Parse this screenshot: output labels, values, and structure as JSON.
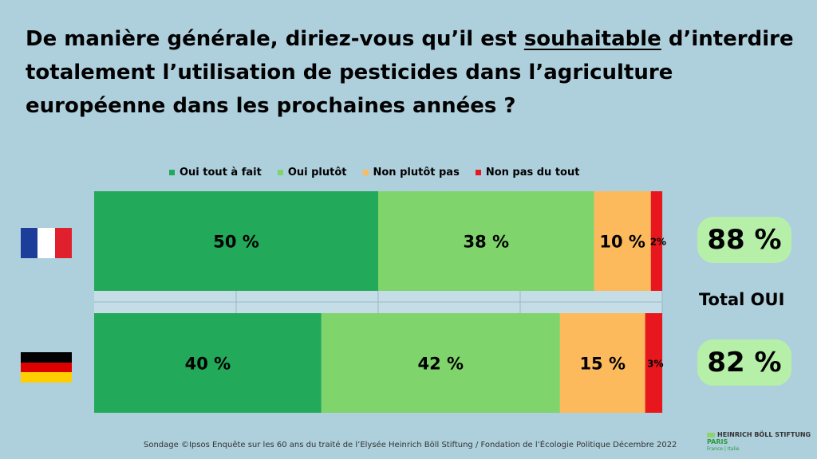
{
  "title_parts": {
    "before": "De manière générale, diriez-vous qu’il est ",
    "underlined": "souhaitable",
    "after": " d’interdire totalement l’utilisation de pesticides dans l’agriculture européenne dans les prochaines années ?"
  },
  "chart_data": {
    "type": "bar",
    "orientation": "horizontal",
    "stacked": true,
    "categories": [
      "France",
      "Allemagne"
    ],
    "series": [
      {
        "name": "Oui tout à fait",
        "values": [
          50,
          40
        ],
        "labels": [
          "50 %",
          "40 %"
        ],
        "color": "#22a95a"
      },
      {
        "name": "Oui plutôt",
        "values": [
          38,
          42
        ],
        "labels": [
          "38 %",
          "42 %"
        ],
        "color": "#7fd46b"
      },
      {
        "name": "Non plutôt pas",
        "values": [
          10,
          15
        ],
        "labels": [
          "10 %",
          "15 %"
        ],
        "color": "#fdba5c"
      },
      {
        "name": "Non pas du tout",
        "values": [
          2,
          3
        ],
        "labels": [
          "2%",
          "3%"
        ],
        "color": "#e8171d"
      }
    ],
    "xlim": [
      0,
      100
    ],
    "grid": true,
    "legend": "top"
  },
  "totals": {
    "label": "Total OUI",
    "values": [
      "88 %",
      "82 %"
    ]
  },
  "flags": {
    "france": [
      "#1d3d9b",
      "#ffffff",
      "#e0212d"
    ],
    "germany": [
      "#000000",
      "#dd0000",
      "#ffce00"
    ]
  },
  "source": "Sondage ©Ipsos Enquête sur les 60 ans du traité de l’Elysée Heinrich Böll Stiftung / Fondation de l’Écologie Politique Décembre 2022",
  "logo": {
    "brand": "HEINRICH BÖLL STIFTUNG",
    "city": "PARIS",
    "sub": "France | Italie"
  }
}
